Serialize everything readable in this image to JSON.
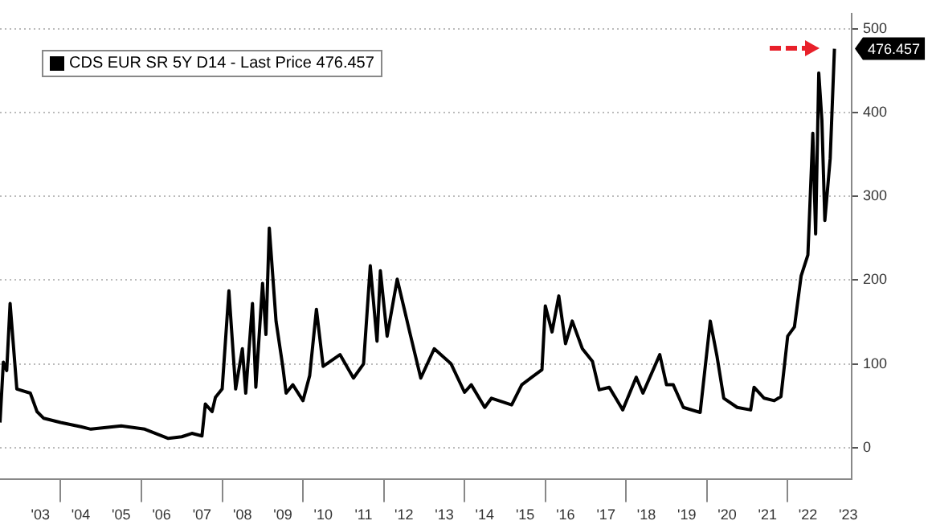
{
  "chart_data": {
    "type": "line",
    "legend": "top left",
    "grid": "y",
    "marker": "none",
    "line_style": "solid",
    "x": [
      "2002-07",
      "2002-08",
      "2002-09",
      "2002-10",
      "2002-12",
      "2003-04",
      "2003-06",
      "2003-08",
      "2004-01",
      "2004-07",
      "2004-10",
      "2005-07",
      "2006-02",
      "2006-09",
      "2007-01",
      "2007-04",
      "2007-07",
      "2007-08",
      "2007-10",
      "2007-11",
      "2008-01",
      "2008-03",
      "2008-05",
      "2008-07",
      "2008-08",
      "2008-10",
      "2008-11",
      "2009-01",
      "2009-02",
      "2009-03",
      "2009-05",
      "2009-07",
      "2009-08",
      "2009-10",
      "2010-01",
      "2010-03",
      "2010-05",
      "2010-07",
      "2010-12",
      "2011-04",
      "2011-07",
      "2011-09",
      "2011-11",
      "2011-12",
      "2012-02",
      "2012-05",
      "2012-09",
      "2012-12",
      "2013-04",
      "2013-09",
      "2014-01",
      "2014-03",
      "2014-07",
      "2014-09",
      "2015-03",
      "2015-06",
      "2015-09",
      "2015-12",
      "2016-01",
      "2016-03",
      "2016-05",
      "2016-07",
      "2016-09",
      "2016-12",
      "2017-03",
      "2017-05",
      "2017-08",
      "2017-12",
      "2018-04",
      "2018-06",
      "2018-11",
      "2019-01",
      "2019-03",
      "2019-06",
      "2019-11",
      "2020-02",
      "2020-04",
      "2020-06",
      "2020-10",
      "2021-02",
      "2021-03",
      "2021-06",
      "2021-09",
      "2021-11",
      "2022-01",
      "2022-03",
      "2022-05",
      "2022-07",
      "2022-08-15",
      "2022-09-10",
      "2022-10-08",
      "2022-11-06",
      "2022-12-02",
      "2023-01-20",
      "2023-02-28"
    ],
    "series": [
      {
        "name": "CDS EUR SR 5Y D14 - Last Price 476.457",
        "color": "#000000",
        "values": [
          30,
          102,
          92,
          172,
          70,
          65,
          43,
          35,
          30,
          25,
          22,
          26,
          22,
          11,
          13,
          17,
          14,
          52,
          43,
          60,
          70,
          187,
          70,
          118,
          65,
          172,
          72,
          196,
          135,
          262,
          151,
          97,
          65,
          75,
          56,
          86,
          165,
          97,
          111,
          83,
          100,
          217,
          127,
          211,
          133,
          201,
          133,
          83,
          118,
          100,
          66,
          75,
          48,
          59,
          51,
          75,
          84,
          93,
          169,
          138,
          181,
          124,
          151,
          118,
          103,
          69,
          72,
          45,
          84,
          65,
          111,
          75,
          75,
          48,
          42,
          151,
          109,
          59,
          48,
          45,
          72,
          59,
          56,
          61,
          133,
          144,
          205,
          230,
          375,
          255,
          447,
          390,
          271,
          345,
          476
        ]
      }
    ],
    "ylim": [
      -38,
      518
    ],
    "yticks": [
      0,
      100,
      200,
      300,
      400,
      500
    ],
    "xlim": [
      "2002-07",
      "2023-08"
    ],
    "xticks": [
      {
        "value": "2003-07",
        "label": "'03"
      },
      {
        "value": "2004-07",
        "label": "'04"
      },
      {
        "value": "2005-07",
        "label": "'05"
      },
      {
        "value": "2006-07",
        "label": "'06"
      },
      {
        "value": "2007-07",
        "label": "'07"
      },
      {
        "value": "2008-07",
        "label": "'08"
      },
      {
        "value": "2009-07",
        "label": "'09"
      },
      {
        "value": "2010-07",
        "label": "'10"
      },
      {
        "value": "2011-07",
        "label": "'11"
      },
      {
        "value": "2012-07",
        "label": "'12"
      },
      {
        "value": "2013-07",
        "label": "'13"
      },
      {
        "value": "2014-07",
        "label": "'14"
      },
      {
        "value": "2015-07",
        "label": "'15"
      },
      {
        "value": "2016-07",
        "label": "'16"
      },
      {
        "value": "2017-07",
        "label": "'17"
      },
      {
        "value": "2018-07",
        "label": "'18"
      },
      {
        "value": "2019-07",
        "label": "'19"
      },
      {
        "value": "2020-07",
        "label": "'20"
      },
      {
        "value": "2021-07",
        "label": "'21"
      },
      {
        "value": "2022-07",
        "label": "'22"
      },
      {
        "value": "2023-07",
        "label": "'23"
      },
      {
        "value": "2004",
        "label": null
      },
      {
        "value": "2006",
        "label": null
      },
      {
        "value": "2008",
        "label": null
      },
      {
        "value": "2010",
        "label": null
      },
      {
        "value": "2012",
        "label": null
      },
      {
        "value": "2014",
        "label": null
      },
      {
        "value": "2016",
        "label": null
      },
      {
        "value": "2018",
        "label": null
      },
      {
        "value": "2020",
        "label": null
      },
      {
        "value": "2022",
        "label": null
      }
    ],
    "annotations": [
      "476.457"
    ]
  }
}
